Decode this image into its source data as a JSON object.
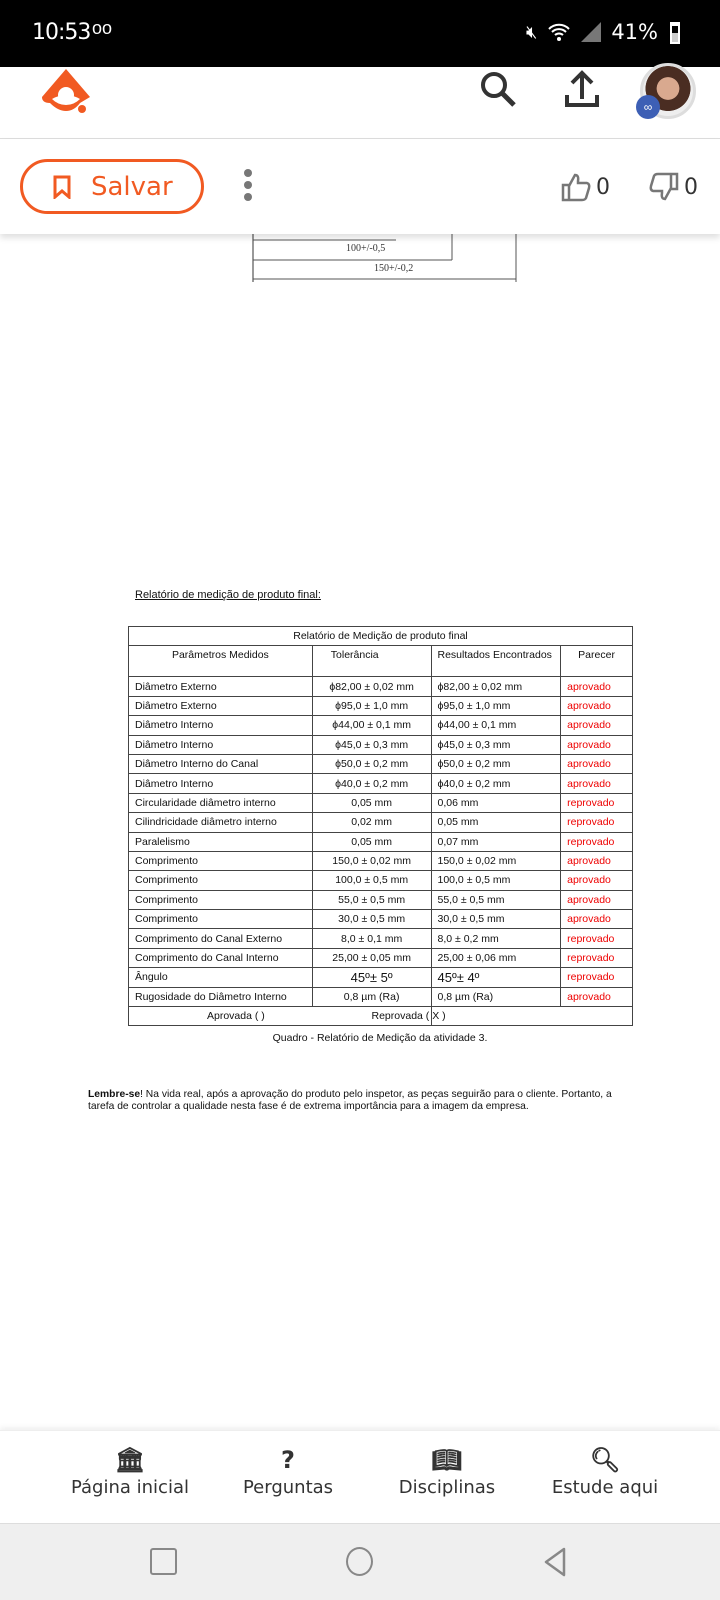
{
  "status_bar": {
    "time": "10:53",
    "voicemail": "oo",
    "battery": "41%"
  },
  "header": {
    "logo": "brainly-logo",
    "search_icon": "search-icon",
    "upload_icon": "upload-icon",
    "avatar": "user-avatar"
  },
  "actions": {
    "save_label": "Salvar",
    "likes": "0",
    "dislikes": "0"
  },
  "drawing": {
    "dim1": "100+/-0,5",
    "dim2": "150+/-0,2"
  },
  "document": {
    "caption": "Relatório de medição de produto final:",
    "table_title": "Relatório de Medição de produto final",
    "headers": [
      "Parâmetros Medidos",
      "Tolerância",
      "Resultados Encontrados",
      "Parecer"
    ],
    "rows": [
      [
        "Diâmetro Externo",
        "ϕ82,00 ± 0,02 mm",
        "ϕ82,00 ± 0,02 mm",
        "aprovado"
      ],
      [
        "Diâmetro Externo",
        "ϕ95,0 ± 1,0 mm",
        "ϕ95,0 ± 1,0 mm",
        "aprovado"
      ],
      [
        "Diâmetro Interno",
        "ϕ44,00 ± 0,1 mm",
        "ϕ44,00 ± 0,1 mm",
        "aprovado"
      ],
      [
        "Diâmetro Interno",
        "ϕ45,0 ± 0,3 mm",
        "ϕ45,0 ± 0,3 mm",
        "aprovado"
      ],
      [
        "Diâmetro Interno do Canal",
        "ϕ50,0 ± 0,2 mm",
        "ϕ50,0 ± 0,2 mm",
        "aprovado"
      ],
      [
        "Diâmetro Interno",
        "ϕ40,0 ± 0,2 mm",
        "ϕ40,0 ± 0,2 mm",
        "aprovado"
      ],
      [
        "Circularidade diâmetro interno",
        "0,05 mm",
        "0,06 mm",
        "reprovado"
      ],
      [
        "Cilindricidade diâmetro interno",
        "0,02 mm",
        "0,05 mm",
        "reprovado"
      ],
      [
        "Paralelismo",
        "0,05 mm",
        "0,07 mm",
        "reprovado"
      ],
      [
        "Comprimento",
        "150,0 ± 0,02 mm",
        "150,0 ± 0,02 mm",
        "aprovado"
      ],
      [
        "Comprimento",
        "100,0 ± 0,5 mm",
        "100,0 ± 0,5 mm",
        "aprovado"
      ],
      [
        "Comprimento",
        "55,0 ± 0,5 mm",
        "55,0 ± 0,5 mm",
        "aprovado"
      ],
      [
        "Comprimento",
        "30,0 ± 0,5 mm",
        "30,0 ± 0,5 mm",
        "aprovado"
      ],
      [
        "Comprimento do Canal Externo",
        "8,0 ± 0,1 mm",
        "8,0 ± 0,2 mm",
        "reprovado"
      ],
      [
        "Comprimento do Canal Interno",
        "25,00 ± 0,05 mm",
        "25,00 ± 0,06 mm",
        "reprovado"
      ],
      [
        "Ângulo",
        "45º± 5º",
        "45º± 4º",
        "reprovado"
      ],
      [
        "Rugosidade do Diâmetro Interno",
        "0,8 µm (Ra)",
        "0,8 µm (Ra)",
        "aprovado"
      ]
    ],
    "footer_approved": "Aprovada   (    )",
    "footer_rejected": "Reprovada ( X  )",
    "table_caption": "Quadro - Relatório de Medição da atividade 3.",
    "note_bold": "Lembre-se",
    "note_text": "! Na vida real, após a aprovação do produto pelo inspetor, as peças seguirão para o cliente. Portanto, a tarefa de controlar a qualidade nesta fase é de extrema importância para a imagem da empresa."
  },
  "bottom_nav": [
    {
      "label": "Página inicial",
      "icon": "bank-icon"
    },
    {
      "label": "Perguntas",
      "icon": "question-icon"
    },
    {
      "label": "Disciplinas",
      "icon": "book-icon"
    },
    {
      "label": "Estude aqui",
      "icon": "study-search-icon"
    }
  ],
  "colors": {
    "brand": "#f15a22",
    "rejected": "#e00000"
  }
}
